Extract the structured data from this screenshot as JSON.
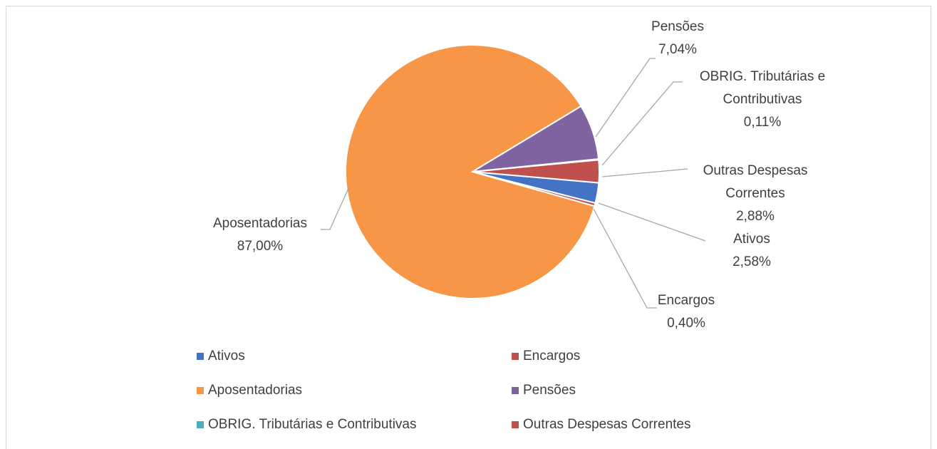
{
  "chart_data": {
    "type": "pie",
    "categories": [
      "Ativos",
      "Encargos",
      "Aposentadorias",
      "Pensões",
      "OBRIG. Tributárias e Contributivas",
      "Outras Despesas Correntes"
    ],
    "values": [
      2.58,
      0.4,
      87.0,
      7.04,
      0.11,
      2.88
    ],
    "value_labels": [
      "2,58%",
      "0,40%",
      "87,00%",
      "7,04%",
      "0,11%",
      "2,88%"
    ],
    "colors": [
      "#4472c4",
      "#c0504d",
      "#f79646",
      "#8064a2",
      "#4bacc6",
      "#c0504d"
    ],
    "legend": "bottom"
  }
}
